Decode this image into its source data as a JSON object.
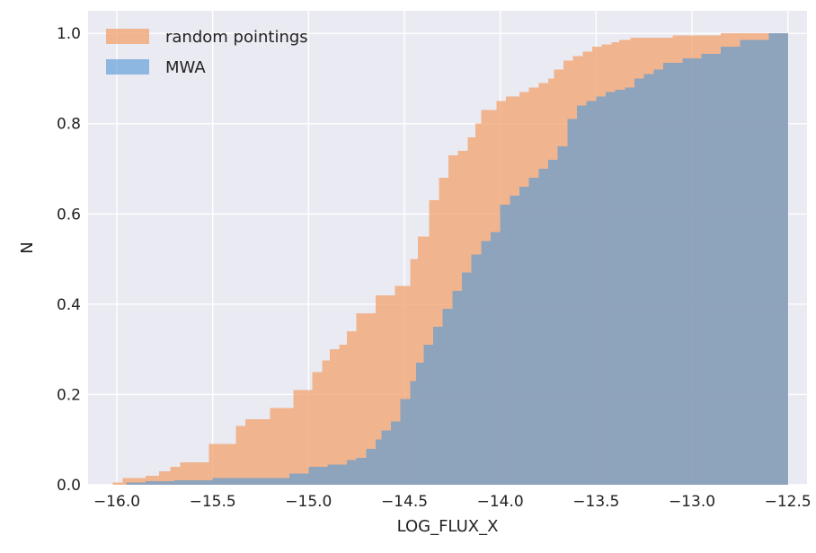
{
  "colors": {
    "plot_background": "#eaeaf2",
    "grid": "#ffffff",
    "random_pointings": "#f2a26e",
    "mwa": "#5b9bd5",
    "overlap": "#919793"
  },
  "chart_data": {
    "type": "step-area",
    "xlabel": "LOG_FLUX_X",
    "ylabel": "N",
    "xlim": [
      -16.15,
      -12.4
    ],
    "ylim": [
      0.0,
      1.05
    ],
    "xticks": [
      -16.0,
      -15.5,
      -15.0,
      -14.5,
      -14.0,
      -13.5,
      -13.0,
      -12.5
    ],
    "xtick_labels": [
      "−16.0",
      "−15.5",
      "−15.0",
      "−14.5",
      "−14.0",
      "−13.5",
      "−13.0",
      "−12.5"
    ],
    "yticks": [
      0.0,
      0.2,
      0.4,
      0.6,
      0.8,
      1.0
    ],
    "ytick_labels": [
      "0.0",
      "0.2",
      "0.4",
      "0.6",
      "0.8",
      "1.0"
    ],
    "grid": true,
    "legend_position": "top-left",
    "series": [
      {
        "name": "random pointings",
        "color": "#f2a26e",
        "alpha": 0.75,
        "x": [
          -16.02,
          -15.97,
          -15.85,
          -15.78,
          -15.72,
          -15.67,
          -15.52,
          -15.38,
          -15.33,
          -15.2,
          -15.08,
          -14.98,
          -14.93,
          -14.89,
          -14.84,
          -14.8,
          -14.75,
          -14.65,
          -14.55,
          -14.47,
          -14.43,
          -14.37,
          -14.32,
          -14.27,
          -14.22,
          -14.17,
          -14.13,
          -14.1,
          -14.02,
          -13.97,
          -13.9,
          -13.85,
          -13.8,
          -13.75,
          -13.72,
          -13.67,
          -13.62,
          -13.57,
          -13.52,
          -13.47,
          -13.42,
          -13.38,
          -13.32,
          -13.22,
          -13.1,
          -12.95,
          -12.85,
          -12.7,
          -12.5
        ],
        "y": [
          0.005,
          0.015,
          0.02,
          0.03,
          0.04,
          0.05,
          0.09,
          0.13,
          0.145,
          0.17,
          0.21,
          0.25,
          0.275,
          0.3,
          0.31,
          0.34,
          0.38,
          0.42,
          0.44,
          0.5,
          0.55,
          0.63,
          0.68,
          0.73,
          0.74,
          0.77,
          0.8,
          0.83,
          0.85,
          0.86,
          0.87,
          0.88,
          0.89,
          0.9,
          0.92,
          0.94,
          0.95,
          0.96,
          0.97,
          0.975,
          0.98,
          0.985,
          0.99,
          0.99,
          0.995,
          0.995,
          1.0,
          1.0,
          1.0
        ]
      },
      {
        "name": "MWA",
        "color": "#5b9bd5",
        "alpha": 0.65,
        "x": [
          -16.02,
          -15.95,
          -15.85,
          -15.7,
          -15.5,
          -15.3,
          -15.1,
          -15.0,
          -14.9,
          -14.8,
          -14.75,
          -14.7,
          -14.65,
          -14.62,
          -14.57,
          -14.52,
          -14.47,
          -14.44,
          -14.4,
          -14.35,
          -14.3,
          -14.25,
          -14.2,
          -14.15,
          -14.1,
          -14.05,
          -14.0,
          -13.95,
          -13.9,
          -13.85,
          -13.8,
          -13.75,
          -13.7,
          -13.65,
          -13.6,
          -13.55,
          -13.5,
          -13.45,
          -13.4,
          -13.35,
          -13.3,
          -13.25,
          -13.2,
          -13.15,
          -13.05,
          -12.95,
          -12.85,
          -12.75,
          -12.6,
          -12.5
        ],
        "y": [
          0.0,
          0.005,
          0.008,
          0.01,
          0.015,
          0.015,
          0.025,
          0.04,
          0.045,
          0.055,
          0.06,
          0.08,
          0.1,
          0.12,
          0.14,
          0.19,
          0.23,
          0.27,
          0.31,
          0.35,
          0.39,
          0.43,
          0.47,
          0.51,
          0.54,
          0.56,
          0.62,
          0.64,
          0.66,
          0.68,
          0.7,
          0.72,
          0.75,
          0.81,
          0.84,
          0.85,
          0.86,
          0.87,
          0.875,
          0.88,
          0.9,
          0.91,
          0.92,
          0.935,
          0.945,
          0.955,
          0.97,
          0.985,
          1.0,
          1.0
        ]
      }
    ]
  }
}
